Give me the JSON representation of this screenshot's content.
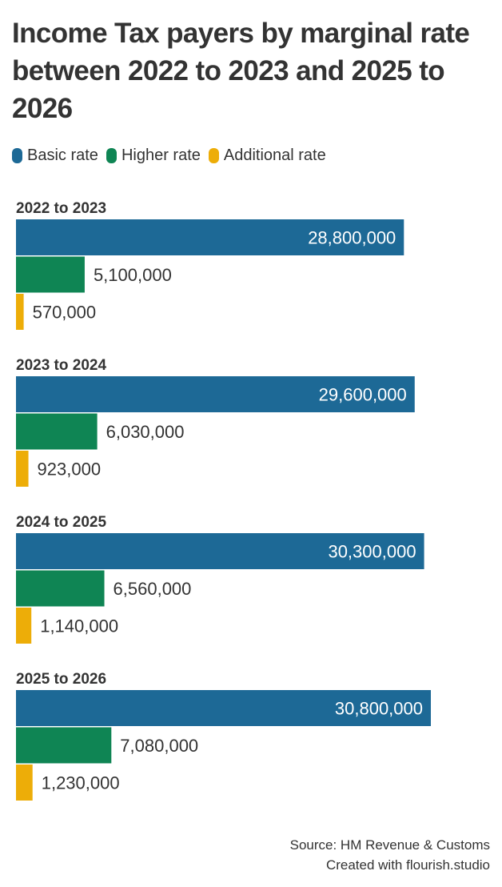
{
  "title": "Income Tax payers by marginal rate between 2022 to 2023 and 2025 to 2026",
  "legend": [
    {
      "label": "Basic rate",
      "color": "#1d6996"
    },
    {
      "label": "Higher rate",
      "color": "#0f8554"
    },
    {
      "label": "Additional rate",
      "color": "#edad08"
    }
  ],
  "chart_data": {
    "type": "bar",
    "orientation": "horizontal",
    "categories": [
      "2022 to 2023",
      "2023 to 2024",
      "2024 to 2025",
      "2025 to 2026"
    ],
    "series": [
      {
        "name": "Basic rate",
        "color": "#1d6996",
        "values": [
          28800000,
          29600000,
          30300000,
          30800000
        ],
        "labels": [
          "28,800,000",
          "29,600,000",
          "30,300,000",
          "30,800,000"
        ]
      },
      {
        "name": "Higher rate",
        "color": "#0f8554",
        "values": [
          5100000,
          6030000,
          6560000,
          7080000
        ],
        "labels": [
          "5,100,000",
          "6,030,000",
          "6,560,000",
          "7,080,000"
        ]
      },
      {
        "name": "Additional rate",
        "color": "#edad08",
        "values": [
          570000,
          923000,
          1140000,
          1230000
        ],
        "labels": [
          "570,000",
          "923,000",
          "1,140,000",
          "1,230,000"
        ]
      }
    ],
    "xlim": [
      0,
      30800000
    ],
    "grid": false,
    "legend_position": "top-left"
  },
  "footer": {
    "source": "Source: HM Revenue & Customs",
    "credit": "Created with flourish.studio"
  }
}
